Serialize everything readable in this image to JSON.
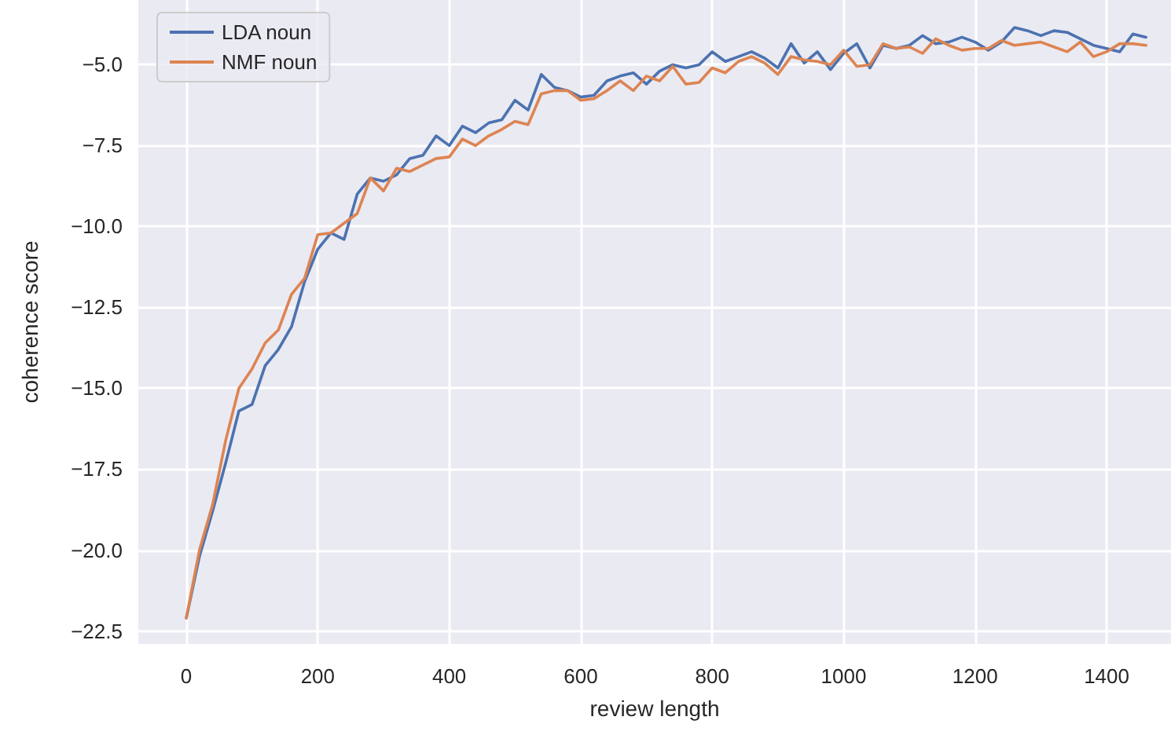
{
  "chart_data": {
    "type": "line",
    "xlabel": "review length",
    "ylabel": "coherence score",
    "x": [
      0,
      20,
      40,
      60,
      80,
      100,
      120,
      140,
      160,
      180,
      200,
      220,
      240,
      260,
      280,
      300,
      320,
      340,
      360,
      380,
      400,
      420,
      440,
      460,
      480,
      500,
      520,
      540,
      560,
      580,
      600,
      620,
      640,
      660,
      680,
      700,
      720,
      740,
      760,
      780,
      800,
      820,
      840,
      860,
      880,
      900,
      920,
      940,
      960,
      980,
      1000,
      1020,
      1040,
      1060,
      1080,
      1100,
      1120,
      1140,
      1160,
      1180,
      1200,
      1220,
      1240,
      1260,
      1280,
      1300,
      1320,
      1340,
      1360,
      1380,
      1400,
      1420,
      1440,
      1460
    ],
    "series": [
      {
        "name": "LDA noun",
        "color": "#4c72b0",
        "values": [
          -22.1,
          -20.2,
          -18.8,
          -17.3,
          -15.7,
          -15.5,
          -14.3,
          -13.8,
          -13.1,
          -11.7,
          -10.7,
          -10.2,
          -10.4,
          -9.0,
          -8.5,
          -8.6,
          -8.4,
          -7.9,
          -7.8,
          -7.2,
          -7.5,
          -6.9,
          -7.1,
          -6.8,
          -6.7,
          -6.1,
          -6.4,
          -5.3,
          -5.7,
          -5.8,
          -6.0,
          -5.95,
          -5.5,
          -5.35,
          -5.25,
          -5.6,
          -5.2,
          -5.0,
          -5.1,
          -5.0,
          -4.6,
          -4.9,
          -4.75,
          -4.6,
          -4.8,
          -5.1,
          -4.35,
          -4.95,
          -4.6,
          -5.15,
          -4.65,
          -4.35,
          -5.1,
          -4.4,
          -4.5,
          -4.4,
          -4.1,
          -4.35,
          -4.3,
          -4.15,
          -4.3,
          -4.55,
          -4.3,
          -3.85,
          -3.95,
          -4.1,
          -3.95,
          -4.0,
          -4.2,
          -4.4,
          -4.5,
          -4.6,
          -4.05,
          -4.15
        ]
      },
      {
        "name": "NMF noun",
        "color": "#dd8452",
        "values": [
          -22.1,
          -20.0,
          -18.6,
          -16.6,
          -15.0,
          -14.4,
          -13.6,
          -13.2,
          -12.1,
          -11.6,
          -10.25,
          -10.2,
          -9.9,
          -9.6,
          -8.5,
          -8.9,
          -8.2,
          -8.3,
          -8.1,
          -7.9,
          -7.85,
          -7.3,
          -7.5,
          -7.2,
          -7.0,
          -6.75,
          -6.85,
          -5.9,
          -5.8,
          -5.8,
          -6.1,
          -6.05,
          -5.8,
          -5.5,
          -5.8,
          -5.35,
          -5.5,
          -5.05,
          -5.6,
          -5.55,
          -5.1,
          -5.25,
          -4.9,
          -4.75,
          -4.95,
          -5.3,
          -4.75,
          -4.85,
          -4.9,
          -5.0,
          -4.55,
          -5.05,
          -5.0,
          -4.35,
          -4.5,
          -4.45,
          -4.65,
          -4.2,
          -4.4,
          -4.55,
          -4.5,
          -4.5,
          -4.25,
          -4.4,
          -4.35,
          -4.3,
          -4.45,
          -4.6,
          -4.3,
          -4.75,
          -4.6,
          -4.35,
          -4.35,
          -4.4
        ]
      }
    ],
    "xlim": [
      -73,
      1498
    ],
    "xticks": [
      0,
      200,
      400,
      600,
      800,
      1000,
      1200,
      1400
    ],
    "ylim": [
      -22.9,
      -3.0
    ],
    "yticks": [
      {
        "value": -22.5,
        "label": "−22.5"
      },
      {
        "value": -20,
        "label": "−20.0"
      },
      {
        "value": -17.5,
        "label": "−17.5"
      },
      {
        "value": -15,
        "label": "−15.0"
      },
      {
        "value": -12.5,
        "label": "−12.5"
      },
      {
        "value": -10,
        "label": "−10.0"
      },
      {
        "value": -7.5,
        "label": "−7.5"
      },
      {
        "value": -5,
        "label": "−5.0"
      }
    ],
    "grid": true,
    "legend": "top left",
    "marker": "none",
    "line_style": "solid"
  }
}
